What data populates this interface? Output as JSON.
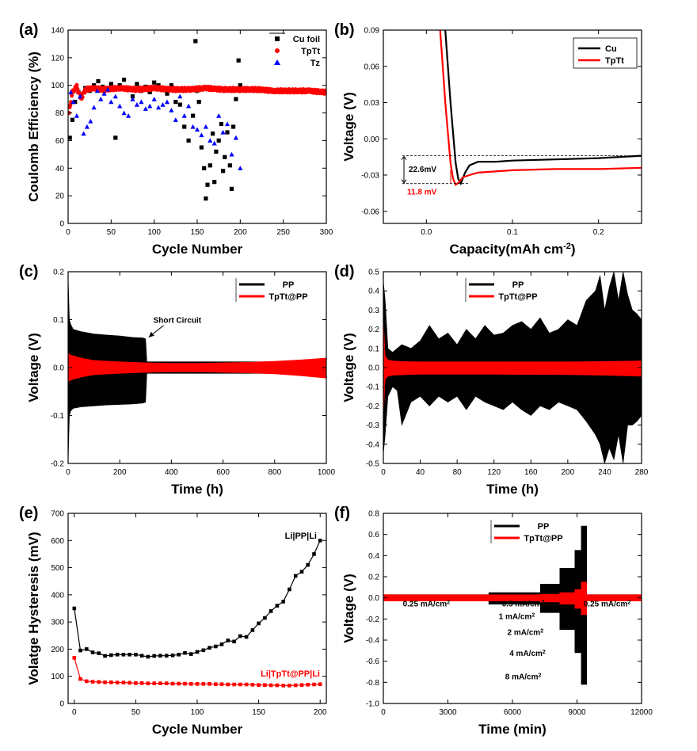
{
  "chart_data": [
    {
      "id": "a",
      "panel_label": "(a)",
      "type": "scatter",
      "xlabel": "Cycle Number",
      "ylabel": "Coulomb Efficiency (%)",
      "xlim": [
        0,
        300
      ],
      "ylim": [
        0,
        140
      ],
      "xticks": [
        0,
        50,
        100,
        150,
        200,
        250,
        300
      ],
      "yticks": [
        0,
        20,
        40,
        60,
        80,
        100,
        120,
        140
      ],
      "legend": {
        "position": "top-right",
        "entries": [
          "Cu foil",
          "TpTt",
          "Tz"
        ]
      },
      "series": [
        {
          "name": "Cu foil",
          "color": "#000000",
          "marker": "square",
          "x": [
            2,
            5,
            8,
            12,
            15,
            20,
            25,
            30,
            35,
            40,
            45,
            50,
            55,
            60,
            65,
            70,
            75,
            80,
            85,
            90,
            95,
            100,
            105,
            110,
            115,
            120,
            125,
            130,
            135,
            140,
            145,
            148,
            150,
            152,
            155,
            158,
            160,
            162,
            165,
            168,
            170,
            172,
            175,
            178,
            180,
            182,
            185,
            188,
            190,
            192,
            195,
            198,
            200
          ],
          "y": [
            62,
            75,
            88,
            95,
            92,
            98,
            96,
            100,
            103,
            99,
            97,
            101,
            62,
            100,
            104,
            98,
            92,
            101,
            96,
            99,
            95,
            102,
            100,
            97,
            94,
            100,
            88,
            86,
            70,
            60,
            78,
            132,
            96,
            88,
            55,
            40,
            18,
            28,
            42,
            65,
            30,
            52,
            60,
            72,
            38,
            48,
            66,
            42,
            25,
            70,
            90,
            118,
            100
          ]
        },
        {
          "name": "TpTt",
          "color": "#ff0000",
          "marker": "circle",
          "dense": true,
          "x": [
            1,
            5,
            10,
            15,
            20,
            30,
            40,
            60,
            80,
            100,
            120,
            140,
            160,
            180,
            200,
            220,
            240,
            260,
            280,
            300
          ],
          "y": [
            80,
            95,
            99,
            90,
            97,
            98,
            97,
            98,
            97,
            98,
            97,
            97,
            98,
            97,
            97,
            97,
            96,
            96,
            96,
            95
          ]
        },
        {
          "name": "Tz",
          "color": "#0000ff",
          "marker": "triangle",
          "x": [
            3,
            6,
            10,
            14,
            18,
            22,
            26,
            30,
            34,
            38,
            42,
            46,
            50,
            55,
            60,
            65,
            70,
            75,
            80,
            85,
            90,
            95,
            100,
            105,
            110,
            115,
            120,
            125,
            130,
            135,
            140,
            145,
            150,
            155,
            160,
            165,
            170,
            175,
            180,
            185,
            190,
            195,
            200
          ],
          "y": [
            95,
            88,
            78,
            92,
            65,
            70,
            74,
            84,
            96,
            90,
            94,
            97,
            88,
            92,
            85,
            80,
            78,
            90,
            86,
            88,
            83,
            85,
            90,
            84,
            86,
            88,
            82,
            75,
            92,
            78,
            85,
            70,
            68,
            64,
            70,
            60,
            58,
            78,
            66,
            72,
            50,
            62,
            40
          ]
        }
      ]
    },
    {
      "id": "b",
      "panel_label": "(b)",
      "type": "line",
      "xlabel": "Capacity(mAh cm",
      "xlabel_sup": "-2",
      "xlabel_end": ")",
      "ylabel": "Voltage (V)",
      "xlim": [
        -0.05,
        0.25
      ],
      "ylim": [
        -0.07,
        0.09
      ],
      "xticks": [
        0.0,
        0.1,
        0.2
      ],
      "yticks": [
        -0.06,
        -0.03,
        0.0,
        0.03,
        0.06,
        0.09
      ],
      "legend": {
        "position": "top-right",
        "entries": [
          "Cu",
          "TpTt"
        ]
      },
      "annotations": [
        {
          "text": "22.6mV",
          "color": "#000000"
        },
        {
          "text": "11.8 mV",
          "color": "#ff0000"
        }
      ],
      "series": [
        {
          "name": "Cu",
          "color": "#000000",
          "x": [
            0.022,
            0.025,
            0.028,
            0.031,
            0.034,
            0.037,
            0.04,
            0.045,
            0.05,
            0.06,
            0.08,
            0.1,
            0.15,
            0.2,
            0.25
          ],
          "y": [
            0.09,
            0.06,
            0.03,
            0.005,
            -0.02,
            -0.033,
            -0.037,
            -0.028,
            -0.022,
            -0.019,
            -0.019,
            -0.018,
            -0.017,
            -0.016,
            -0.014
          ]
        },
        {
          "name": "TpTt",
          "color": "#ff0000",
          "x": [
            0.016,
            0.019,
            0.022,
            0.025,
            0.028,
            0.031,
            0.034,
            0.038,
            0.042,
            0.05,
            0.06,
            0.08,
            0.1,
            0.15,
            0.2,
            0.25
          ],
          "y": [
            0.09,
            0.06,
            0.03,
            0.005,
            -0.02,
            -0.033,
            -0.038,
            -0.036,
            -0.032,
            -0.03,
            -0.028,
            -0.027,
            -0.026,
            -0.025,
            -0.025,
            -0.024
          ]
        }
      ]
    },
    {
      "id": "c",
      "panel_label": "(c)",
      "type": "area",
      "xlabel": "Time (h)",
      "ylabel": "Voltage (V)",
      "xlim": [
        0,
        1000
      ],
      "ylim": [
        -0.2,
        0.2
      ],
      "xticks": [
        0,
        200,
        400,
        600,
        800,
        1000
      ],
      "yticks": [
        -0.2,
        -0.1,
        0.0,
        0.1,
        0.2
      ],
      "legend": {
        "position": "top-right",
        "entries": [
          "PP",
          "TpTt@PP"
        ]
      },
      "annotations": [
        {
          "text": "Short Circuit",
          "color": "#000000"
        }
      ],
      "series": [
        {
          "name": "PP",
          "color": "#000000",
          "envelope": true,
          "x": [
            0,
            5,
            10,
            20,
            50,
            100,
            150,
            200,
            250,
            290,
            300,
            305,
            1000
          ],
          "upper": [
            0.19,
            0.1,
            0.09,
            0.08,
            0.075,
            0.07,
            0.068,
            0.066,
            0.063,
            0.062,
            0.06,
            0.012,
            0.012
          ],
          "lower": [
            -0.2,
            -0.1,
            -0.09,
            -0.085,
            -0.082,
            -0.08,
            -0.078,
            -0.077,
            -0.076,
            -0.074,
            -0.072,
            -0.012,
            -0.012
          ]
        },
        {
          "name": "TpTt@PP",
          "color": "#ff0000",
          "envelope": true,
          "x": [
            0,
            10,
            50,
            100,
            200,
            300,
            400,
            500,
            600,
            700,
            800,
            900,
            1000
          ],
          "upper": [
            0.03,
            0.026,
            0.02,
            0.015,
            0.012,
            0.01,
            0.009,
            0.009,
            0.01,
            0.011,
            0.013,
            0.016,
            0.02
          ],
          "lower": [
            -0.03,
            -0.026,
            -0.02,
            -0.015,
            -0.012,
            -0.01,
            -0.009,
            -0.009,
            -0.01,
            -0.011,
            -0.013,
            -0.017,
            -0.022
          ]
        }
      ]
    },
    {
      "id": "d",
      "panel_label": "(d)",
      "type": "area",
      "xlabel": "Time (h)",
      "ylabel": "Voltage (V)",
      "xlim": [
        0,
        280
      ],
      "ylim": [
        -0.5,
        0.5
      ],
      "xticks": [
        0,
        40,
        80,
        120,
        160,
        200,
        240,
        280
      ],
      "yticks": [
        -0.5,
        -0.4,
        -0.3,
        -0.2,
        -0.1,
        0.0,
        0.1,
        0.2,
        0.3,
        0.4,
        0.5
      ],
      "legend": {
        "position": "top-center",
        "entries": [
          "PP",
          "TpTt@PP"
        ]
      },
      "series": [
        {
          "name": "PP",
          "color": "#000000",
          "envelope": true,
          "x": [
            0,
            2,
            5,
            10,
            15,
            20,
            30,
            40,
            50,
            60,
            70,
            80,
            90,
            100,
            110,
            120,
            130,
            140,
            150,
            160,
            170,
            180,
            190,
            200,
            210,
            220,
            230,
            235,
            240,
            245,
            250,
            255,
            260,
            265,
            270,
            275,
            280
          ],
          "upper": [
            0.45,
            0.35,
            0.1,
            0.08,
            0.1,
            0.12,
            0.1,
            0.14,
            0.22,
            0.15,
            0.18,
            0.12,
            0.2,
            0.15,
            0.22,
            0.17,
            0.18,
            0.22,
            0.24,
            0.2,
            0.26,
            0.18,
            0.2,
            0.25,
            0.22,
            0.35,
            0.4,
            0.48,
            0.3,
            0.42,
            0.5,
            0.35,
            0.5,
            0.38,
            0.3,
            0.28,
            0.25
          ],
          "lower": [
            -0.45,
            -0.35,
            -0.15,
            -0.1,
            -0.12,
            -0.3,
            -0.18,
            -0.15,
            -0.2,
            -0.15,
            -0.18,
            -0.15,
            -0.22,
            -0.15,
            -0.18,
            -0.2,
            -0.22,
            -0.18,
            -0.22,
            -0.25,
            -0.2,
            -0.22,
            -0.18,
            -0.2,
            -0.22,
            -0.28,
            -0.35,
            -0.4,
            -0.5,
            -0.42,
            -0.48,
            -0.35,
            -0.5,
            -0.3,
            -0.3,
            -0.28,
            -0.25
          ]
        },
        {
          "name": "TpTt@PP",
          "color": "#ff0000",
          "envelope": true,
          "x": [
            0,
            2,
            5,
            10,
            20,
            40,
            80,
            120,
            160,
            200,
            240,
            280
          ],
          "upper": [
            0.25,
            0.06,
            0.04,
            0.035,
            0.032,
            0.03,
            0.03,
            0.03,
            0.03,
            0.03,
            0.032,
            0.035
          ],
          "lower": [
            -0.25,
            -0.06,
            -0.045,
            -0.04,
            -0.038,
            -0.035,
            -0.035,
            -0.035,
            -0.036,
            -0.037,
            -0.04,
            -0.045
          ]
        }
      ]
    },
    {
      "id": "e",
      "panel_label": "(e)",
      "type": "line",
      "xlabel": "Cycle Number",
      "ylabel": "Volatge Hysteresis (mV)",
      "xlim": [
        -5,
        205
      ],
      "ylim": [
        0,
        700
      ],
      "xticks": [
        0,
        50,
        100,
        150,
        200
      ],
      "yticks": [
        0,
        100,
        200,
        300,
        400,
        500,
        600,
        700
      ],
      "legend": {
        "position": "inline",
        "entries": [
          "Li|PP|Li",
          "Li|TpTt@PP|Li"
        ]
      },
      "series": [
        {
          "name": "Li|PP|Li",
          "color": "#000000",
          "marker": "square",
          "x": [
            0,
            5,
            10,
            15,
            20,
            25,
            30,
            35,
            40,
            45,
            50,
            55,
            60,
            65,
            70,
            75,
            80,
            85,
            90,
            95,
            100,
            105,
            110,
            115,
            120,
            125,
            130,
            135,
            140,
            145,
            150,
            155,
            160,
            165,
            170,
            175,
            180,
            185,
            190,
            195,
            200
          ],
          "y": [
            350,
            195,
            200,
            188,
            185,
            175,
            178,
            180,
            180,
            180,
            180,
            176,
            172,
            175,
            176,
            176,
            177,
            180,
            186,
            182,
            190,
            196,
            205,
            210,
            218,
            232,
            228,
            248,
            245,
            270,
            295,
            315,
            340,
            360,
            375,
            420,
            470,
            485,
            510,
            550,
            600
          ]
        },
        {
          "name": "Li|TpTt@PP|Li",
          "color": "#ff0000",
          "marker": "square",
          "x": [
            0,
            5,
            10,
            15,
            20,
            25,
            30,
            35,
            40,
            45,
            50,
            55,
            60,
            65,
            70,
            75,
            80,
            85,
            90,
            95,
            100,
            105,
            110,
            115,
            120,
            125,
            130,
            135,
            140,
            145,
            150,
            155,
            160,
            165,
            170,
            175,
            180,
            185,
            190,
            195,
            200
          ],
          "y": [
            168,
            90,
            82,
            80,
            79,
            78,
            78,
            77,
            77,
            76,
            75,
            75,
            74,
            74,
            74,
            74,
            73,
            73,
            73,
            72,
            72,
            72,
            72,
            71,
            71,
            70,
            70,
            70,
            70,
            69,
            68,
            68,
            67,
            67,
            66,
            66,
            67,
            68,
            69,
            70,
            71
          ]
        }
      ]
    },
    {
      "id": "f",
      "panel_label": "(f)",
      "type": "area",
      "xlabel": "Time (min)",
      "ylabel": "Voltage (V)",
      "xlim": [
        0,
        12000
      ],
      "ylim": [
        -1.0,
        0.8
      ],
      "xticks": [
        0,
        3000,
        6000,
        9000,
        12000
      ],
      "yticks": [
        -1.0,
        -0.8,
        -0.6,
        -0.4,
        -0.2,
        0.0,
        0.2,
        0.4,
        0.6,
        0.8
      ],
      "legend": {
        "position": "top-center",
        "entries": [
          "PP",
          "TpTt@PP"
        ]
      },
      "rate_labels": [
        "0.25 mA/cm",
        "0.5 mA/cm",
        "1 mA/cm",
        "2 mA/cm",
        "4 mA/cm",
        "8 mA/cm",
        "0.25 mA/cm"
      ],
      "rate_sup": "2",
      "series": [
        {
          "name": "PP",
          "color": "#000000",
          "envelope": true,
          "x": [
            0,
            4900,
            4900,
            7300,
            7300,
            8200,
            8200,
            8900,
            8900,
            9200,
            9200,
            9450,
            9450,
            12000
          ],
          "upper": [
            0.03,
            0.03,
            0.05,
            0.05,
            0.13,
            0.13,
            0.28,
            0.28,
            0.45,
            0.45,
            0.68,
            0.68,
            0.03,
            0.03
          ],
          "lower": [
            -0.03,
            -0.03,
            -0.06,
            -0.06,
            -0.14,
            -0.14,
            -0.3,
            -0.3,
            -0.52,
            -0.52,
            -0.82,
            -0.82,
            -0.03,
            -0.03
          ]
        },
        {
          "name": "TpTt@PP",
          "color": "#ff0000",
          "envelope": true,
          "x": [
            0,
            4900,
            4900,
            7300,
            7300,
            8200,
            8200,
            8900,
            8900,
            9200,
            9200,
            9450,
            9450,
            12000
          ],
          "upper": [
            0.03,
            0.03,
            0.03,
            0.03,
            0.035,
            0.035,
            0.05,
            0.05,
            0.08,
            0.08,
            0.15,
            0.15,
            0.03,
            0.03
          ],
          "lower": [
            -0.03,
            -0.03,
            -0.03,
            -0.03,
            -0.04,
            -0.04,
            -0.06,
            -0.06,
            -0.1,
            -0.1,
            -0.16,
            -0.16,
            -0.03,
            -0.03
          ]
        }
      ]
    }
  ]
}
